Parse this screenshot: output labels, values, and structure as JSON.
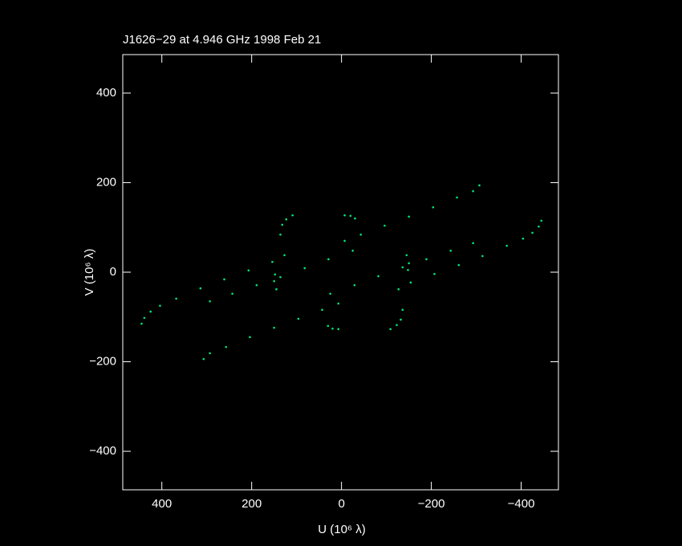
{
  "chart_data": {
    "type": "scatter",
    "title": "J1626−29 at 4.946 GHz 1998 Feb 21",
    "x_label": "U (10⁶ λ)",
    "y_label": "V (10⁶ λ)",
    "color": "#00e676",
    "xlim": [
      487,
      -483
    ],
    "ylim": [
      -486,
      486
    ],
    "xticks": [
      400,
      200,
      0,
      {
        "value": -200,
        "label": "−200"
      },
      {
        "value": -400,
        "label": "−400"
      }
    ],
    "yticks": [
      {
        "value": -400,
        "label": "−400"
      },
      {
        "value": -200,
        "label": "−200"
      },
      0,
      200,
      400
    ],
    "series": [
      {
        "x": [
          445,
          439,
          425,
          404,
          368,
          314,
          261,
          207,
          154,
          127
        ],
        "y": [
          -115,
          -102,
          -88,
          -75,
          -59,
          -36,
          -16,
          4,
          23,
          38
        ]
      },
      {
        "x": [
          -445,
          -439,
          -425,
          -404,
          -368,
          -314,
          -261,
          -207,
          -154,
          -127
        ],
        "y": [
          115,
          102,
          88,
          75,
          59,
          36,
          16,
          -4,
          -23,
          -38
        ]
      },
      {
        "x": [
          -307,
          -293,
          -257,
          -204,
          -150,
          -96,
          -43,
          -7
        ],
        "y": [
          194,
          181,
          167,
          145,
          124,
          104,
          84,
          70
        ]
      },
      {
        "x": [
          307,
          293,
          257,
          204,
          150,
          96,
          43,
          7
        ],
        "y": [
          -194,
          -181,
          -167,
          -145,
          -124,
          -104,
          -84,
          -70
        ]
      },
      {
        "x": [
          293,
          243,
          189,
          136,
          82,
          29,
          -25
        ],
        "y": [
          -65,
          -48,
          -29,
          -11,
          9,
          29,
          48
        ]
      },
      {
        "x": [
          -293,
          -243,
          -189,
          -136,
          -82,
          -29,
          25
        ],
        "y": [
          65,
          48,
          29,
          11,
          -9,
          -29,
          -48
        ]
      },
      {
        "x": [
          136,
          132,
          123,
          109
        ],
        "y": [
          84,
          106,
          118,
          127
        ]
      },
      {
        "x": [
          -136,
          -132,
          -123,
          -109
        ],
        "y": [
          -84,
          -106,
          -118,
          -127
        ]
      },
      {
        "x": [
          -7,
          -20,
          -30
        ],
        "y": [
          127,
          126,
          120
        ]
      },
      {
        "x": [
          7,
          20,
          30
        ],
        "y": [
          -127,
          -126,
          -120
        ]
      },
      {
        "x": [
          148,
          150,
          145
        ],
        "y": [
          -5,
          -20,
          -38
        ]
      },
      {
        "x": [
          -148,
          -150,
          -145
        ],
        "y": [
          5,
          20,
          38
        ]
      }
    ]
  }
}
